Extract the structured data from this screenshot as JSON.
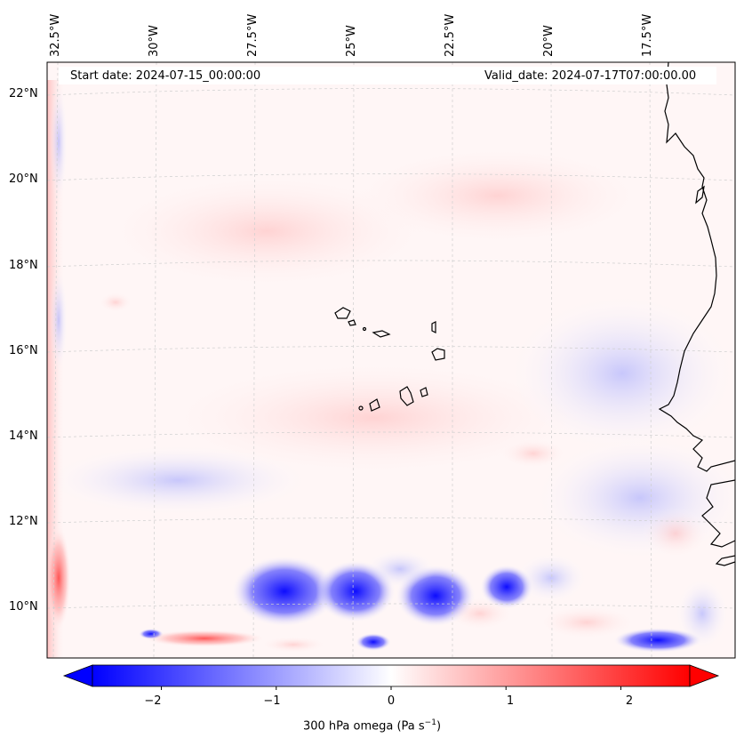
{
  "map": {
    "start_date": "Start date: 2024-07-15_00:00:00",
    "valid_date": "Valid_date: 2024-07-17T07:00:00.00",
    "lon_labels": [
      "32.5°W",
      "30°W",
      "27.5°W",
      "25°W",
      "22.5°W",
      "20°W",
      "17.5°W"
    ],
    "lat_labels": [
      "22°N",
      "20°N",
      "18°N",
      "16°N",
      "14°N",
      "12°N",
      "10°N"
    ],
    "lon_values": [
      -32.5,
      -30,
      -27.5,
      -25,
      -22.5,
      -20,
      -17.5
    ],
    "lat_values": [
      22,
      20,
      18,
      16,
      14,
      12,
      10
    ],
    "extent": {
      "lon_min": -32.6,
      "lon_max": -15.2,
      "lat_min": 8.9,
      "lat_max": 22.8
    },
    "colors": {
      "negative": "#0000ff",
      "positive": "#ff0000",
      "neutral": "#ffffff",
      "coast": "#000000",
      "grid": "#c8c8c8"
    }
  },
  "colorbar": {
    "title": "300 hPa omega (Pa s",
    "title_sup": "−1",
    "title_end": ")",
    "ticks": [
      "−2",
      "−1",
      "0",
      "1",
      "2"
    ],
    "tick_values": [
      -2,
      -1,
      0,
      1,
      2
    ],
    "vmin": -2.6,
    "vmax": 2.6
  }
}
